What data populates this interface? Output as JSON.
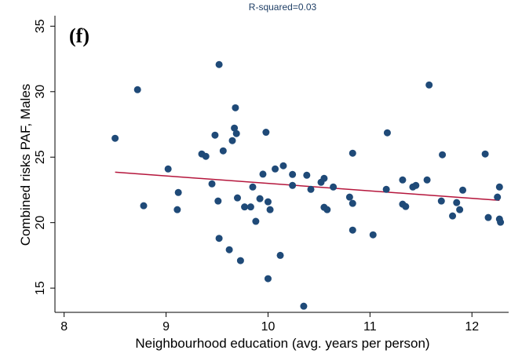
{
  "chart_data": {
    "type": "scatter",
    "title": "R-squared=0.03",
    "annotation": "(f)",
    "x_label": "Neighbourhood education (avg. years per person)",
    "y_label": "Combined risks PAF, Males",
    "xlim": [
      7.91,
      12.36
    ],
    "ylim": [
      13.15,
      35.8
    ],
    "xticks": [
      8,
      9,
      10,
      11,
      12
    ],
    "yticks": [
      15,
      20,
      25,
      30,
      35
    ],
    "grid": false,
    "color": "#1f4a78",
    "x": [
      8.5,
      8.72,
      8.78,
      9.02,
      9.12,
      9.11,
      9.35,
      9.39,
      9.45,
      9.48,
      9.52,
      9.51,
      9.52,
      9.56,
      9.62,
      9.65,
      9.67,
      9.68,
      9.69,
      9.7,
      9.73,
      9.77,
      9.83,
      9.85,
      9.88,
      9.92,
      9.95,
      9.98,
      10.0,
      10.02,
      10.0,
      10.07,
      10.12,
      10.15,
      10.24,
      10.24,
      10.35,
      10.38,
      10.42,
      10.52,
      10.55,
      10.55,
      10.58,
      10.64,
      10.8,
      10.83,
      10.83,
      10.83,
      11.03,
      11.17,
      11.16,
      11.32,
      11.32,
      11.35,
      11.42,
      11.45,
      11.56,
      11.58,
      11.7,
      11.71,
      11.81,
      11.85,
      11.88,
      11.91,
      12.13,
      12.16,
      12.25,
      12.27,
      12.27,
      12.28
    ],
    "values": [
      26.44,
      30.15,
      21.29,
      24.1,
      22.3,
      20.99,
      25.24,
      25.06,
      22.96,
      26.68,
      32.07,
      21.65,
      18.8,
      25.48,
      17.93,
      26.26,
      27.22,
      28.77,
      26.8,
      21.89,
      17.1,
      21.2,
      21.2,
      22.72,
      20.1,
      21.83,
      23.7,
      26.9,
      21.59,
      20.99,
      15.72,
      24.1,
      17.5,
      24.34,
      23.68,
      22.84,
      13.62,
      23.62,
      22.54,
      23.08,
      23.38,
      21.17,
      20.99,
      22.72,
      21.95,
      25.3,
      21.47,
      19.43,
      19.07,
      26.86,
      22.54,
      23.26,
      21.41,
      21.23,
      22.72,
      22.84,
      23.26,
      30.51,
      21.65,
      25.18,
      20.51,
      21.53,
      20.99,
      22.48,
      25.24,
      20.39,
      21.95,
      22.72,
      20.27,
      20.03
    ],
    "fit_line": {
      "color": "#b5163c",
      "x": [
        8.5,
        12.27
      ],
      "values": [
        23.85,
        21.7
      ]
    }
  }
}
